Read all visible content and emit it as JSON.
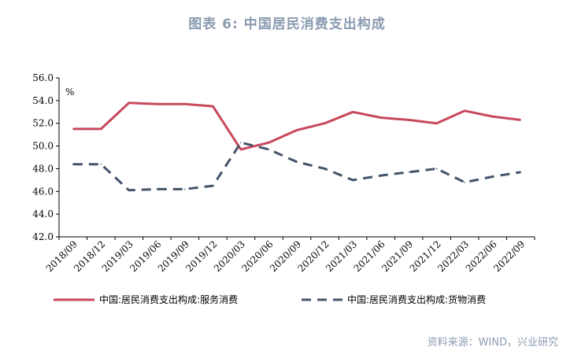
{
  "title": "图表 6:   中国居民消费支出构成",
  "source": "资料来源：WIND，兴业研究",
  "chart_data": {
    "type": "line",
    "ylabel": "%",
    "ylim": [
      42.0,
      56.0
    ],
    "yticks": [
      "42.0",
      "44.0",
      "46.0",
      "48.0",
      "50.0",
      "52.0",
      "54.0",
      "56.0"
    ],
    "categories": [
      "2018/09",
      "2018/12",
      "2019/03",
      "2019/06",
      "2019/09",
      "2019/12",
      "2020/03",
      "2020/06",
      "2020/09",
      "2020/12",
      "2021/03",
      "2021/06",
      "2021/09",
      "2021/12",
      "2022/03",
      "2022/06",
      "2022/09"
    ],
    "series": [
      {
        "name": "中国:居民消费支出构成:服务消费",
        "color": "#c8485c",
        "style": "solid",
        "values": [
          51.5,
          51.5,
          53.8,
          53.7,
          53.7,
          53.5,
          49.7,
          50.3,
          51.4,
          52.0,
          53.0,
          52.5,
          52.3,
          52.0,
          53.1,
          52.6,
          52.3
        ]
      },
      {
        "name": "中国:居民消费支出构成:货物消费",
        "color": "#44546a",
        "style": "dashed",
        "values": [
          48.4,
          48.4,
          46.1,
          46.2,
          46.2,
          46.5,
          50.3,
          49.7,
          48.6,
          48.0,
          47.0,
          47.4,
          47.7,
          48.0,
          46.8,
          47.3,
          47.7
        ]
      }
    ]
  }
}
